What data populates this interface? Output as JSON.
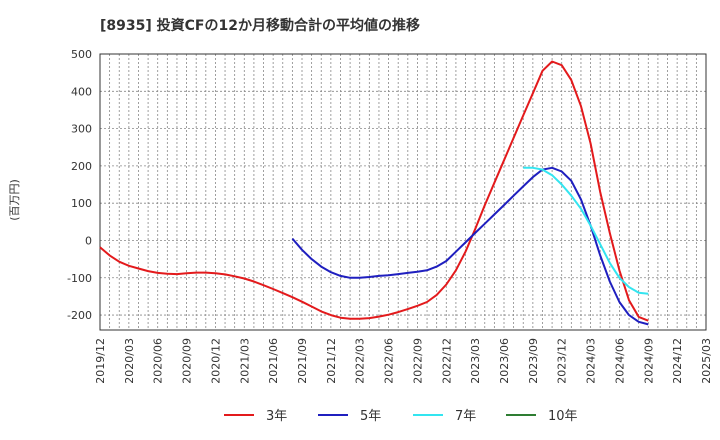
{
  "chart_data": {
    "type": "line",
    "title": "[8935]  投資CFの12か月移動合計の平均値の推移",
    "ylabel": "(百万円)",
    "xlabel": "",
    "ylim": [
      -240,
      500
    ],
    "yticks": [
      500,
      400,
      300,
      200,
      100,
      0,
      -100,
      -200
    ],
    "xticks": [
      "2019/12",
      "2020/03",
      "2020/06",
      "2020/09",
      "2020/12",
      "2021/03",
      "2021/06",
      "2021/09",
      "2021/12",
      "2022/03",
      "2022/06",
      "2022/09",
      "2022/12",
      "2023/03",
      "2023/06",
      "2023/09",
      "2023/12",
      "2024/03",
      "2024/06",
      "2024/09",
      "2024/12",
      "2025/03"
    ],
    "grid": true,
    "legend_position": "bottom",
    "series": [
      {
        "name": "3年",
        "color": "#e31a1c",
        "x": [
          "2019/12",
          "2020/01",
          "2020/02",
          "2020/03",
          "2020/04",
          "2020/05",
          "2020/06",
          "2020/07",
          "2020/08",
          "2020/09",
          "2020/10",
          "2020/11",
          "2020/12",
          "2021/01",
          "2021/02",
          "2021/03",
          "2021/04",
          "2021/05",
          "2021/06",
          "2021/07",
          "2021/08",
          "2021/09",
          "2021/10",
          "2021/11",
          "2021/12",
          "2022/01",
          "2022/02",
          "2022/03",
          "2022/04",
          "2022/05",
          "2022/06",
          "2022/07",
          "2022/08",
          "2022/09",
          "2022/10",
          "2022/11",
          "2022/12",
          "2023/01",
          "2023/02",
          "2023/03",
          "2023/04",
          "2023/05",
          "2023/06",
          "2023/07",
          "2023/08",
          "2023/09",
          "2023/10",
          "2023/11",
          "2023/12",
          "2024/01",
          "2024/02",
          "2024/03",
          "2024/04",
          "2024/05",
          "2024/06",
          "2024/07",
          "2024/08",
          "2024/09"
        ],
        "values": [
          -18,
          -40,
          -57,
          -68,
          -75,
          -82,
          -87,
          -89,
          -90,
          -88,
          -86,
          -86,
          -88,
          -91,
          -96,
          -102,
          -110,
          -120,
          -130,
          -141,
          -152,
          -164,
          -177,
          -190,
          -200,
          -207,
          -210,
          -210,
          -208,
          -204,
          -199,
          -192,
          -184,
          -175,
          -165,
          -146,
          -118,
          -80,
          -30,
          30,
          95,
          155,
          215,
          275,
          335,
          395,
          455,
          480,
          470,
          430,
          360,
          260,
          130,
          20,
          -80,
          -160,
          -205,
          -215
        ]
      },
      {
        "name": "5年",
        "color": "#1f1fbf",
        "x": [
          "2021/08",
          "2021/09",
          "2021/10",
          "2021/11",
          "2021/12",
          "2022/01",
          "2022/02",
          "2022/03",
          "2022/04",
          "2022/05",
          "2022/06",
          "2022/07",
          "2022/08",
          "2022/09",
          "2022/10",
          "2022/11",
          "2022/12",
          "2023/01",
          "2023/02",
          "2023/03",
          "2023/04",
          "2023/05",
          "2023/06",
          "2023/07",
          "2023/08",
          "2023/09",
          "2023/10",
          "2023/11",
          "2023/12",
          "2024/01",
          "2024/02",
          "2024/03",
          "2024/04",
          "2024/05",
          "2024/06",
          "2024/07",
          "2024/08",
          "2024/09"
        ],
        "values": [
          5,
          -25,
          -50,
          -70,
          -85,
          -95,
          -100,
          -100,
          -98,
          -95,
          -93,
          -90,
          -87,
          -84,
          -80,
          -70,
          -55,
          -30,
          -5,
          20,
          45,
          70,
          95,
          120,
          145,
          170,
          190,
          195,
          185,
          160,
          110,
          40,
          -40,
          -110,
          -165,
          -200,
          -218,
          -225
        ]
      },
      {
        "name": "7年",
        "color": "#33e5f0",
        "x": [
          "2023/08",
          "2023/09",
          "2023/10",
          "2023/11",
          "2023/12",
          "2024/01",
          "2024/02",
          "2024/03",
          "2024/04",
          "2024/05",
          "2024/06",
          "2024/07",
          "2024/08",
          "2024/09"
        ],
        "values": [
          195,
          195,
          190,
          175,
          150,
          120,
          85,
          40,
          -10,
          -60,
          -100,
          -125,
          -140,
          -143
        ]
      },
      {
        "name": "10年",
        "color": "#2e7d32",
        "x": [],
        "values": []
      }
    ]
  }
}
